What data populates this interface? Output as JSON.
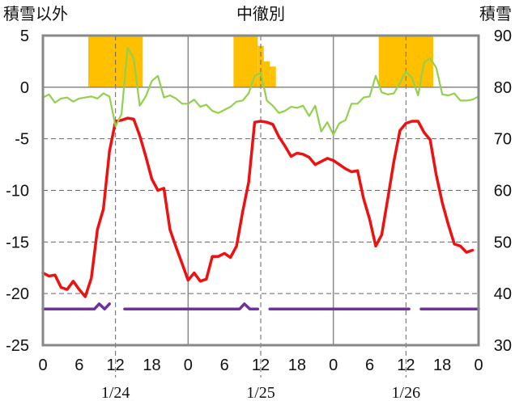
{
  "chart_data": {
    "type": "line",
    "headers": {
      "left": "積雪以外",
      "center": "中徹別",
      "right": "積雪"
    },
    "y_left": {
      "ticks": [
        5,
        0,
        -5,
        -10,
        -15,
        -20,
        -25
      ],
      "range": [
        -25,
        5
      ]
    },
    "y_right": {
      "ticks": [
        90,
        80,
        70,
        60,
        50,
        40,
        30
      ],
      "range": [
        30,
        90
      ]
    },
    "x": {
      "range": [
        0,
        72
      ],
      "tick_labels": [
        "0",
        "6",
        "12",
        "18",
        "0",
        "6",
        "12",
        "18",
        "0",
        "6",
        "12",
        "18",
        "0"
      ],
      "day_labels": [
        {
          "label": "1/24",
          "x": 12
        },
        {
          "label": "1/25",
          "x": 36
        },
        {
          "label": "1/26",
          "x": 60
        }
      ]
    },
    "grid": true,
    "day_boundaries": [
      24,
      48
    ],
    "marker_lines": [
      12,
      36,
      60
    ],
    "colors": {
      "temperature": "#ee1111",
      "green": "#92d050",
      "purple": "#7030a0",
      "sunshine": "#ffc000",
      "grid": "#666666",
      "frame": "#888888"
    },
    "sunshine_bars": [
      {
        "start": 7.5,
        "end": 16.5,
        "top": 5
      },
      {
        "start": 31.5,
        "end": 35.5,
        "top": 5
      },
      {
        "start": 35.5,
        "end": 36.5,
        "top": 4
      },
      {
        "start": 36.5,
        "end": 37.5,
        "top": 2.5
      },
      {
        "start": 37.5,
        "end": 38.5,
        "top": 2
      },
      {
        "start": 55.5,
        "end": 64.5,
        "top": 5
      }
    ],
    "series": [
      {
        "axis": "left",
        "color": "#ee1111",
        "values": [
          [
            0,
            -18.0
          ],
          [
            1,
            -18.3
          ],
          [
            2,
            -18.2
          ],
          [
            3,
            -19.4
          ],
          [
            4,
            -19.6
          ],
          [
            5,
            -18.8
          ],
          [
            6,
            -19.6
          ],
          [
            7,
            -20.3
          ],
          [
            8,
            -18.5
          ],
          [
            9,
            -13.8
          ],
          [
            10,
            -11.8
          ],
          [
            11,
            -6.2
          ],
          [
            12,
            -3.3
          ],
          [
            13,
            -3.2
          ],
          [
            14,
            -3.0
          ],
          [
            15,
            -3.1
          ],
          [
            16,
            -4.7
          ],
          [
            17,
            -6.7
          ],
          [
            18,
            -8.9
          ],
          [
            19,
            -10.0
          ],
          [
            20,
            -9.8
          ],
          [
            21,
            -13.8
          ],
          [
            22,
            -15.5
          ],
          [
            23,
            -17.1
          ],
          [
            24,
            -18.7
          ],
          [
            25,
            -18.0
          ],
          [
            26,
            -18.8
          ],
          [
            27,
            -18.6
          ],
          [
            28,
            -16.4
          ],
          [
            29,
            -16.4
          ],
          [
            30,
            -16.1
          ],
          [
            31,
            -16.5
          ],
          [
            32,
            -15.4
          ],
          [
            33,
            -12.1
          ],
          [
            34,
            -9.2
          ],
          [
            35,
            -3.4
          ],
          [
            36,
            -3.3
          ],
          [
            37,
            -3.4
          ],
          [
            38,
            -3.6
          ],
          [
            39,
            -4.8
          ],
          [
            40,
            -5.7
          ],
          [
            41,
            -6.7
          ],
          [
            42,
            -6.4
          ],
          [
            43,
            -6.5
          ],
          [
            44,
            -6.8
          ],
          [
            45,
            -7.5
          ],
          [
            46,
            -7.2
          ],
          [
            47,
            -6.9
          ],
          [
            48,
            -7.1
          ],
          [
            49,
            -7.5
          ],
          [
            50,
            -7.9
          ],
          [
            51,
            -8.2
          ],
          [
            52,
            -8.1
          ],
          [
            53,
            -10.8
          ],
          [
            54,
            -12.8
          ],
          [
            55,
            -15.4
          ],
          [
            56,
            -14.3
          ],
          [
            57,
            -10.8
          ],
          [
            58,
            -7.2
          ],
          [
            59,
            -4.2
          ],
          [
            60,
            -3.5
          ],
          [
            61,
            -3.3
          ],
          [
            62,
            -3.3
          ],
          [
            63,
            -4.4
          ],
          [
            64,
            -5.1
          ],
          [
            65,
            -8.5
          ],
          [
            66,
            -11.2
          ],
          [
            67,
            -13.3
          ],
          [
            68,
            -15.2
          ],
          [
            69,
            -15.4
          ],
          [
            70,
            -16.0
          ],
          [
            71,
            -15.8
          ]
        ]
      },
      {
        "axis": "left",
        "color": "#92d050",
        "values": [
          [
            0,
            -1.0
          ],
          [
            1,
            -0.7
          ],
          [
            2,
            -1.5
          ],
          [
            3,
            -1.1
          ],
          [
            4,
            -1.0
          ],
          [
            5,
            -1.4
          ],
          [
            6,
            -1.1
          ],
          [
            7,
            -1.0
          ],
          [
            8,
            -0.9
          ],
          [
            9,
            -1.1
          ],
          [
            10,
            -0.6
          ],
          [
            11,
            -0.9
          ],
          [
            12,
            -3.8
          ],
          [
            13,
            -2.6
          ],
          [
            14,
            3.8
          ],
          [
            15,
            2.8
          ],
          [
            16,
            -1.8
          ],
          [
            17,
            -0.9
          ],
          [
            18,
            0.6
          ],
          [
            19,
            1.1
          ],
          [
            20,
            -1.0
          ],
          [
            21,
            -0.8
          ],
          [
            22,
            -1.1
          ],
          [
            23,
            -1.6
          ],
          [
            24,
            -1.6
          ],
          [
            25,
            -1.2
          ],
          [
            26,
            -1.9
          ],
          [
            27,
            -1.7
          ],
          [
            28,
            -2.3
          ],
          [
            29,
            -2.5
          ],
          [
            30,
            -2.2
          ],
          [
            31,
            -1.9
          ],
          [
            32,
            -1.4
          ],
          [
            33,
            -1.3
          ],
          [
            34,
            -0.6
          ],
          [
            35,
            1.1
          ],
          [
            36,
            1.4
          ],
          [
            37,
            -1.3
          ],
          [
            38,
            -1.8
          ],
          [
            39,
            -2.5
          ],
          [
            40,
            -2.3
          ],
          [
            41,
            -1.9
          ],
          [
            42,
            -2.0
          ],
          [
            43,
            -1.8
          ],
          [
            44,
            -2.8
          ],
          [
            45,
            -1.8
          ],
          [
            46,
            -4.3
          ],
          [
            47,
            -3.4
          ],
          [
            48,
            -4.6
          ],
          [
            49,
            -3.5
          ],
          [
            50,
            -3.2
          ],
          [
            51,
            -1.6
          ],
          [
            52,
            -1.6
          ],
          [
            53,
            -1.0
          ],
          [
            54,
            -0.9
          ],
          [
            55,
            1.1
          ],
          [
            56,
            -0.5
          ],
          [
            57,
            -0.7
          ],
          [
            58,
            -0.6
          ],
          [
            59,
            0.4
          ],
          [
            60,
            1.5
          ],
          [
            61,
            0.9
          ],
          [
            62,
            -0.8
          ],
          [
            63,
            2.4
          ],
          [
            64,
            2.8
          ],
          [
            65,
            1.9
          ],
          [
            66,
            -0.7
          ],
          [
            67,
            -0.8
          ],
          [
            68,
            -0.6
          ],
          [
            69,
            -1.3
          ],
          [
            70,
            -1.3
          ],
          [
            71,
            -1.2
          ],
          [
            72,
            -0.9
          ]
        ]
      },
      {
        "axis": "left",
        "color": "#7030a0",
        "segments": [
          [
            [
              0,
              -21.5
            ],
            [
              8.5,
              -21.5
            ],
            [
              9.3,
              -21.0
            ],
            [
              10.2,
              -21.5
            ],
            [
              11.0,
              -21.0
            ]
          ],
          [
            [
              13.5,
              -21.5
            ],
            [
              32.5,
              -21.5
            ],
            [
              33.3,
              -21.0
            ],
            [
              34.2,
              -21.5
            ],
            [
              35.5,
              -21.5
            ]
          ],
          [
            [
              37.5,
              -21.5
            ],
            [
              60.5,
              -21.5
            ]
          ],
          [
            [
              62.5,
              -21.5
            ],
            [
              72.0,
              -21.5
            ]
          ]
        ]
      }
    ]
  }
}
